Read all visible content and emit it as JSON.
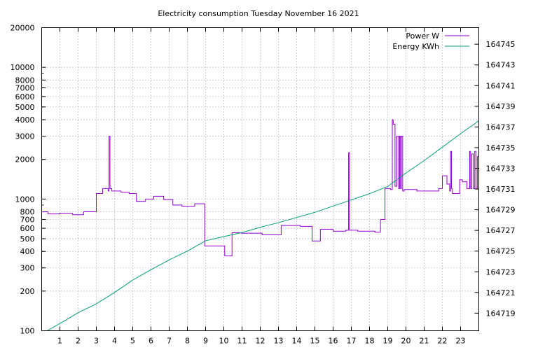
{
  "chart_data": {
    "type": "line",
    "title": "Electricity consumption Tuesday November 16 2021",
    "xlabel": "",
    "ylabel": "",
    "y2label": "",
    "grid": true,
    "legend_position": "top-right",
    "xlim": [
      0,
      24
    ],
    "x_ticks": [
      1,
      2,
      3,
      4,
      5,
      6,
      7,
      8,
      9,
      10,
      11,
      12,
      13,
      14,
      15,
      16,
      17,
      18,
      19,
      20,
      21,
      22,
      23
    ],
    "y_scale": "log",
    "ylim": [
      100,
      20000
    ],
    "y_ticks": [
      {
        "value": 100,
        "label": "100"
      },
      {
        "value": 200,
        "label": "200"
      },
      {
        "value": 300,
        "label": "300"
      },
      {
        "value": 400,
        "label": "400"
      },
      {
        "value": 500,
        "label": "500"
      },
      {
        "value": 600,
        "label": "600"
      },
      {
        "value": 700,
        "label": "700"
      },
      {
        "value": 800,
        "label": "800"
      },
      {
        "value": 1000,
        "label": "1000"
      },
      {
        "value": 2000,
        "label": "2000"
      },
      {
        "value": 3000,
        "label": "3000"
      },
      {
        "value": 4000,
        "label": "4000"
      },
      {
        "value": 5000,
        "label": "5000"
      },
      {
        "value": 6000,
        "label": "6000"
      },
      {
        "value": 7000,
        "label": "7000"
      },
      {
        "value": 8000,
        "label": "8000"
      },
      {
        "value": 10000,
        "label": "10000"
      },
      {
        "value": 20000,
        "label": "20000"
      }
    ],
    "y2lim": [
      164717.3,
      164746.6
    ],
    "y2_ticks": [
      164719,
      164721,
      164723,
      164725,
      164727,
      164729,
      164731,
      164733,
      164735,
      164737,
      164739,
      164741,
      164743,
      164745
    ],
    "series": [
      {
        "name": "Power W",
        "color": "#9400d3",
        "axis": "y",
        "step": true,
        "x": [
          0,
          0.35,
          1.0,
          1.7,
          2.3,
          3.0,
          3.35,
          3.65,
          3.7,
          3.75,
          3.85,
          4.35,
          4.8,
          5.2,
          5.7,
          6.15,
          6.7,
          7.2,
          7.7,
          8.4,
          8.95,
          9.05,
          10.05,
          10.45,
          10.95,
          12.1,
          13.15,
          14.2,
          14.85,
          15.3,
          16.0,
          16.7,
          16.85,
          16.9,
          16.95,
          17.35,
          18.3,
          18.6,
          18.85,
          19.15,
          19.25,
          19.3,
          19.4,
          19.5,
          19.6,
          19.65,
          19.7,
          19.75,
          19.82,
          19.9,
          20.6,
          21.8,
          22.0,
          22.25,
          22.4,
          22.45,
          22.5,
          22.55,
          22.95,
          23.1,
          23.35,
          23.5,
          23.55,
          23.62,
          23.7,
          23.78,
          23.85,
          23.92,
          24.0
        ],
        "values": [
          800,
          770,
          780,
          760,
          800,
          1100,
          1200,
          1150,
          3000,
          1200,
          1150,
          1130,
          1100,
          960,
          1000,
          1050,
          990,
          900,
          880,
          920,
          440,
          440,
          370,
          555,
          550,
          535,
          630,
          620,
          480,
          590,
          570,
          580,
          2250,
          580,
          580,
          570,
          560,
          700,
          1200,
          1180,
          4000,
          3700,
          1250,
          3000,
          1200,
          3000,
          1200,
          3000,
          1150,
          1180,
          1150,
          1200,
          1500,
          1300,
          1150,
          2300,
          1200,
          1100,
          1400,
          1350,
          1200,
          2300,
          1200,
          2200,
          1200,
          2300,
          1200,
          2100,
          1200
        ]
      },
      {
        "name": "Energy KWh",
        "color": "#009e73",
        "axis": "y2",
        "step": false,
        "x": [
          0.3,
          1.3,
          2.0,
          3.0,
          4.0,
          5.0,
          6.0,
          7.0,
          8.0,
          9.0,
          10.0,
          11.0,
          12.0,
          13.0,
          14.0,
          15.0,
          16.0,
          17.0,
          18.0,
          19.0,
          20.0,
          21.0,
          22.0,
          23.0,
          24.0
        ],
        "values": [
          164717.3,
          164718.3,
          164719.05,
          164719.9,
          164721.0,
          164722.2,
          164723.2,
          164724.15,
          164725.0,
          164726.0,
          164726.4,
          164726.8,
          164727.3,
          164727.75,
          164728.25,
          164728.75,
          164729.35,
          164729.95,
          164730.55,
          164731.25,
          164732.55,
          164733.75,
          164735.05,
          164736.35,
          164737.6
        ]
      }
    ]
  }
}
